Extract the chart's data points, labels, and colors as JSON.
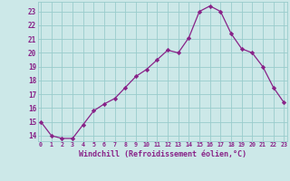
{
  "x": [
    0,
    1,
    2,
    3,
    4,
    5,
    6,
    7,
    8,
    9,
    10,
    11,
    12,
    13,
    14,
    15,
    16,
    17,
    18,
    19,
    20,
    21,
    22,
    23
  ],
  "y": [
    15.0,
    14.0,
    13.8,
    13.8,
    14.8,
    15.8,
    16.3,
    16.7,
    17.5,
    18.3,
    18.8,
    19.5,
    20.2,
    20.0,
    21.1,
    23.0,
    23.4,
    23.0,
    21.4,
    20.3,
    20.0,
    19.0,
    17.5,
    16.4
  ],
  "line_color": "#882288",
  "marker": "D",
  "marker_size": 2.2,
  "bg_color": "#cce8e8",
  "grid_color": "#99cccc",
  "xlabel": "Windchill (Refroidissement éolien,°C)",
  "ylabel_ticks": [
    14,
    15,
    16,
    17,
    18,
    19,
    20,
    21,
    22,
    23
  ],
  "xtick_labels": [
    "0",
    "1",
    "2",
    "3",
    "4",
    "5",
    "6",
    "7",
    "8",
    "9",
    "10",
    "11",
    "12",
    "13",
    "14",
    "15",
    "16",
    "17",
    "18",
    "19",
    "20",
    "21",
    "22",
    "23"
  ],
  "xlim": [
    -0.3,
    23.3
  ],
  "ylim": [
    13.6,
    23.7
  ],
  "font_color": "#882288"
}
